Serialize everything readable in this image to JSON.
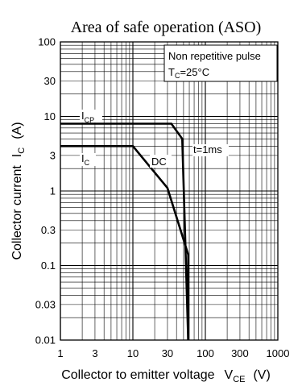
{
  "chart_data": {
    "type": "line",
    "title": "Area of safe operation (ASO)",
    "x_scale": "log",
    "y_scale": "log",
    "xlim": [
      1,
      1000
    ],
    "ylim": [
      0.01,
      100
    ],
    "x_ticks": [
      1,
      3,
      10,
      30,
      100,
      300,
      1000
    ],
    "x_tick_labels": [
      "1",
      "3",
      "10",
      "30",
      "100",
      "300",
      "1000"
    ],
    "y_ticks": [
      0.01,
      0.03,
      0.1,
      0.3,
      1,
      3,
      10,
      30,
      100
    ],
    "y_tick_labels": [
      "0.01",
      "0.03",
      "0.1",
      "0.3",
      "1",
      "3",
      "10",
      "30",
      "100"
    ],
    "xlabel": {
      "main": "Collector to emitter voltage",
      "symbol": "V",
      "subscript": "CE",
      "unit": "(V)"
    },
    "ylabel": {
      "main": "Collector current",
      "symbol": "I",
      "subscript": "C",
      "unit": "(A)"
    },
    "grid": true,
    "conditions": {
      "line1": "Non repetitive pulse",
      "line2_symbol": "T",
      "line2_subscript": "C",
      "line2_value": "=25°C"
    },
    "series": [
      {
        "name": "t=1ms",
        "points": [
          [
            1,
            8
          ],
          [
            34,
            8
          ],
          [
            48,
            5
          ],
          [
            58,
            0.01
          ]
        ]
      },
      {
        "name": "DC",
        "points": [
          [
            1,
            4
          ],
          [
            10,
            4
          ],
          [
            30,
            1.1
          ],
          [
            58,
            0.14
          ],
          [
            58,
            0.01
          ]
        ]
      }
    ],
    "annotations": [
      {
        "symbol": "I",
        "subscript": "CP",
        "text": ""
      },
      {
        "symbol": "I",
        "subscript": "C",
        "text": ""
      },
      {
        "symbol": "",
        "subscript": "",
        "text": "DC"
      },
      {
        "symbol": "",
        "subscript": "",
        "text": "t=1ms"
      }
    ]
  }
}
